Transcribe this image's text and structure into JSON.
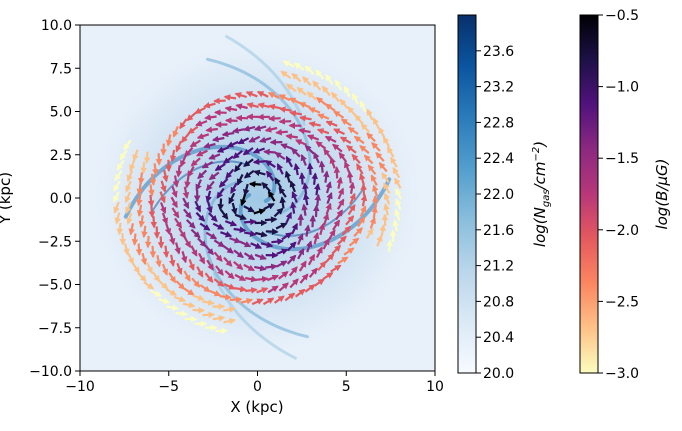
{
  "chart_data": {
    "type": "heatmap",
    "title": "",
    "xlabel": "X (kpc)",
    "ylabel": "Y (kpc)",
    "xlim": [
      -10,
      10
    ],
    "ylim": [
      -10,
      10
    ],
    "xticks": [
      "−10",
      "−5",
      "0",
      "5",
      "10"
    ],
    "yticks": [
      "10.0",
      "7.5",
      "5.0",
      "2.5",
      "0.0",
      "−2.5",
      "−5.0",
      "−7.5",
      "−10.0"
    ],
    "grid": false,
    "density_map": {
      "description_label": "log(N_gas/cm^-2)",
      "colorbar_label_base": "log(N",
      "colorbar_label_sub": "gas",
      "colorbar_label_mid": "/cm",
      "colorbar_label_sup": "−2",
      "colorbar_label_end": ")",
      "range": [
        20.0,
        24.0
      ],
      "ticks": [
        "23.6",
        "23.2",
        "22.8",
        "22.4",
        "22.0",
        "21.6",
        "21.2",
        "20.8",
        "20.4",
        "20.0"
      ],
      "colors": [
        "#f7fbff",
        "#dbe9f6",
        "#bad6eb",
        "#89bedc",
        "#539ecd",
        "#2b7bba",
        "#0b559f",
        "#08306b"
      ]
    },
    "magnetic_field": {
      "colorbar_label": "log(B/μG)",
      "range": [
        -3.0,
        -0.5
      ],
      "ticks": [
        "−0.5",
        "−1.0",
        "−1.5",
        "−2.0",
        "−2.5",
        "−3.0"
      ],
      "colors": [
        "#fcfdbf",
        "#fec287",
        "#fb8761",
        "#e45a5f",
        "#b73779",
        "#8c2981",
        "#51127c",
        "#1d1147",
        "#000004"
      ],
      "vectors": "azimuthal field vectors on a polar grid, strongest (dark) in the inner ~5 kpc, weakest (yellow) at the outer edge",
      "field_model": {
        "center": [
          0,
          0
        ],
        "radius_max": 8.0,
        "logB_center": -0.6,
        "logB_edge": -2.9
      }
    }
  }
}
